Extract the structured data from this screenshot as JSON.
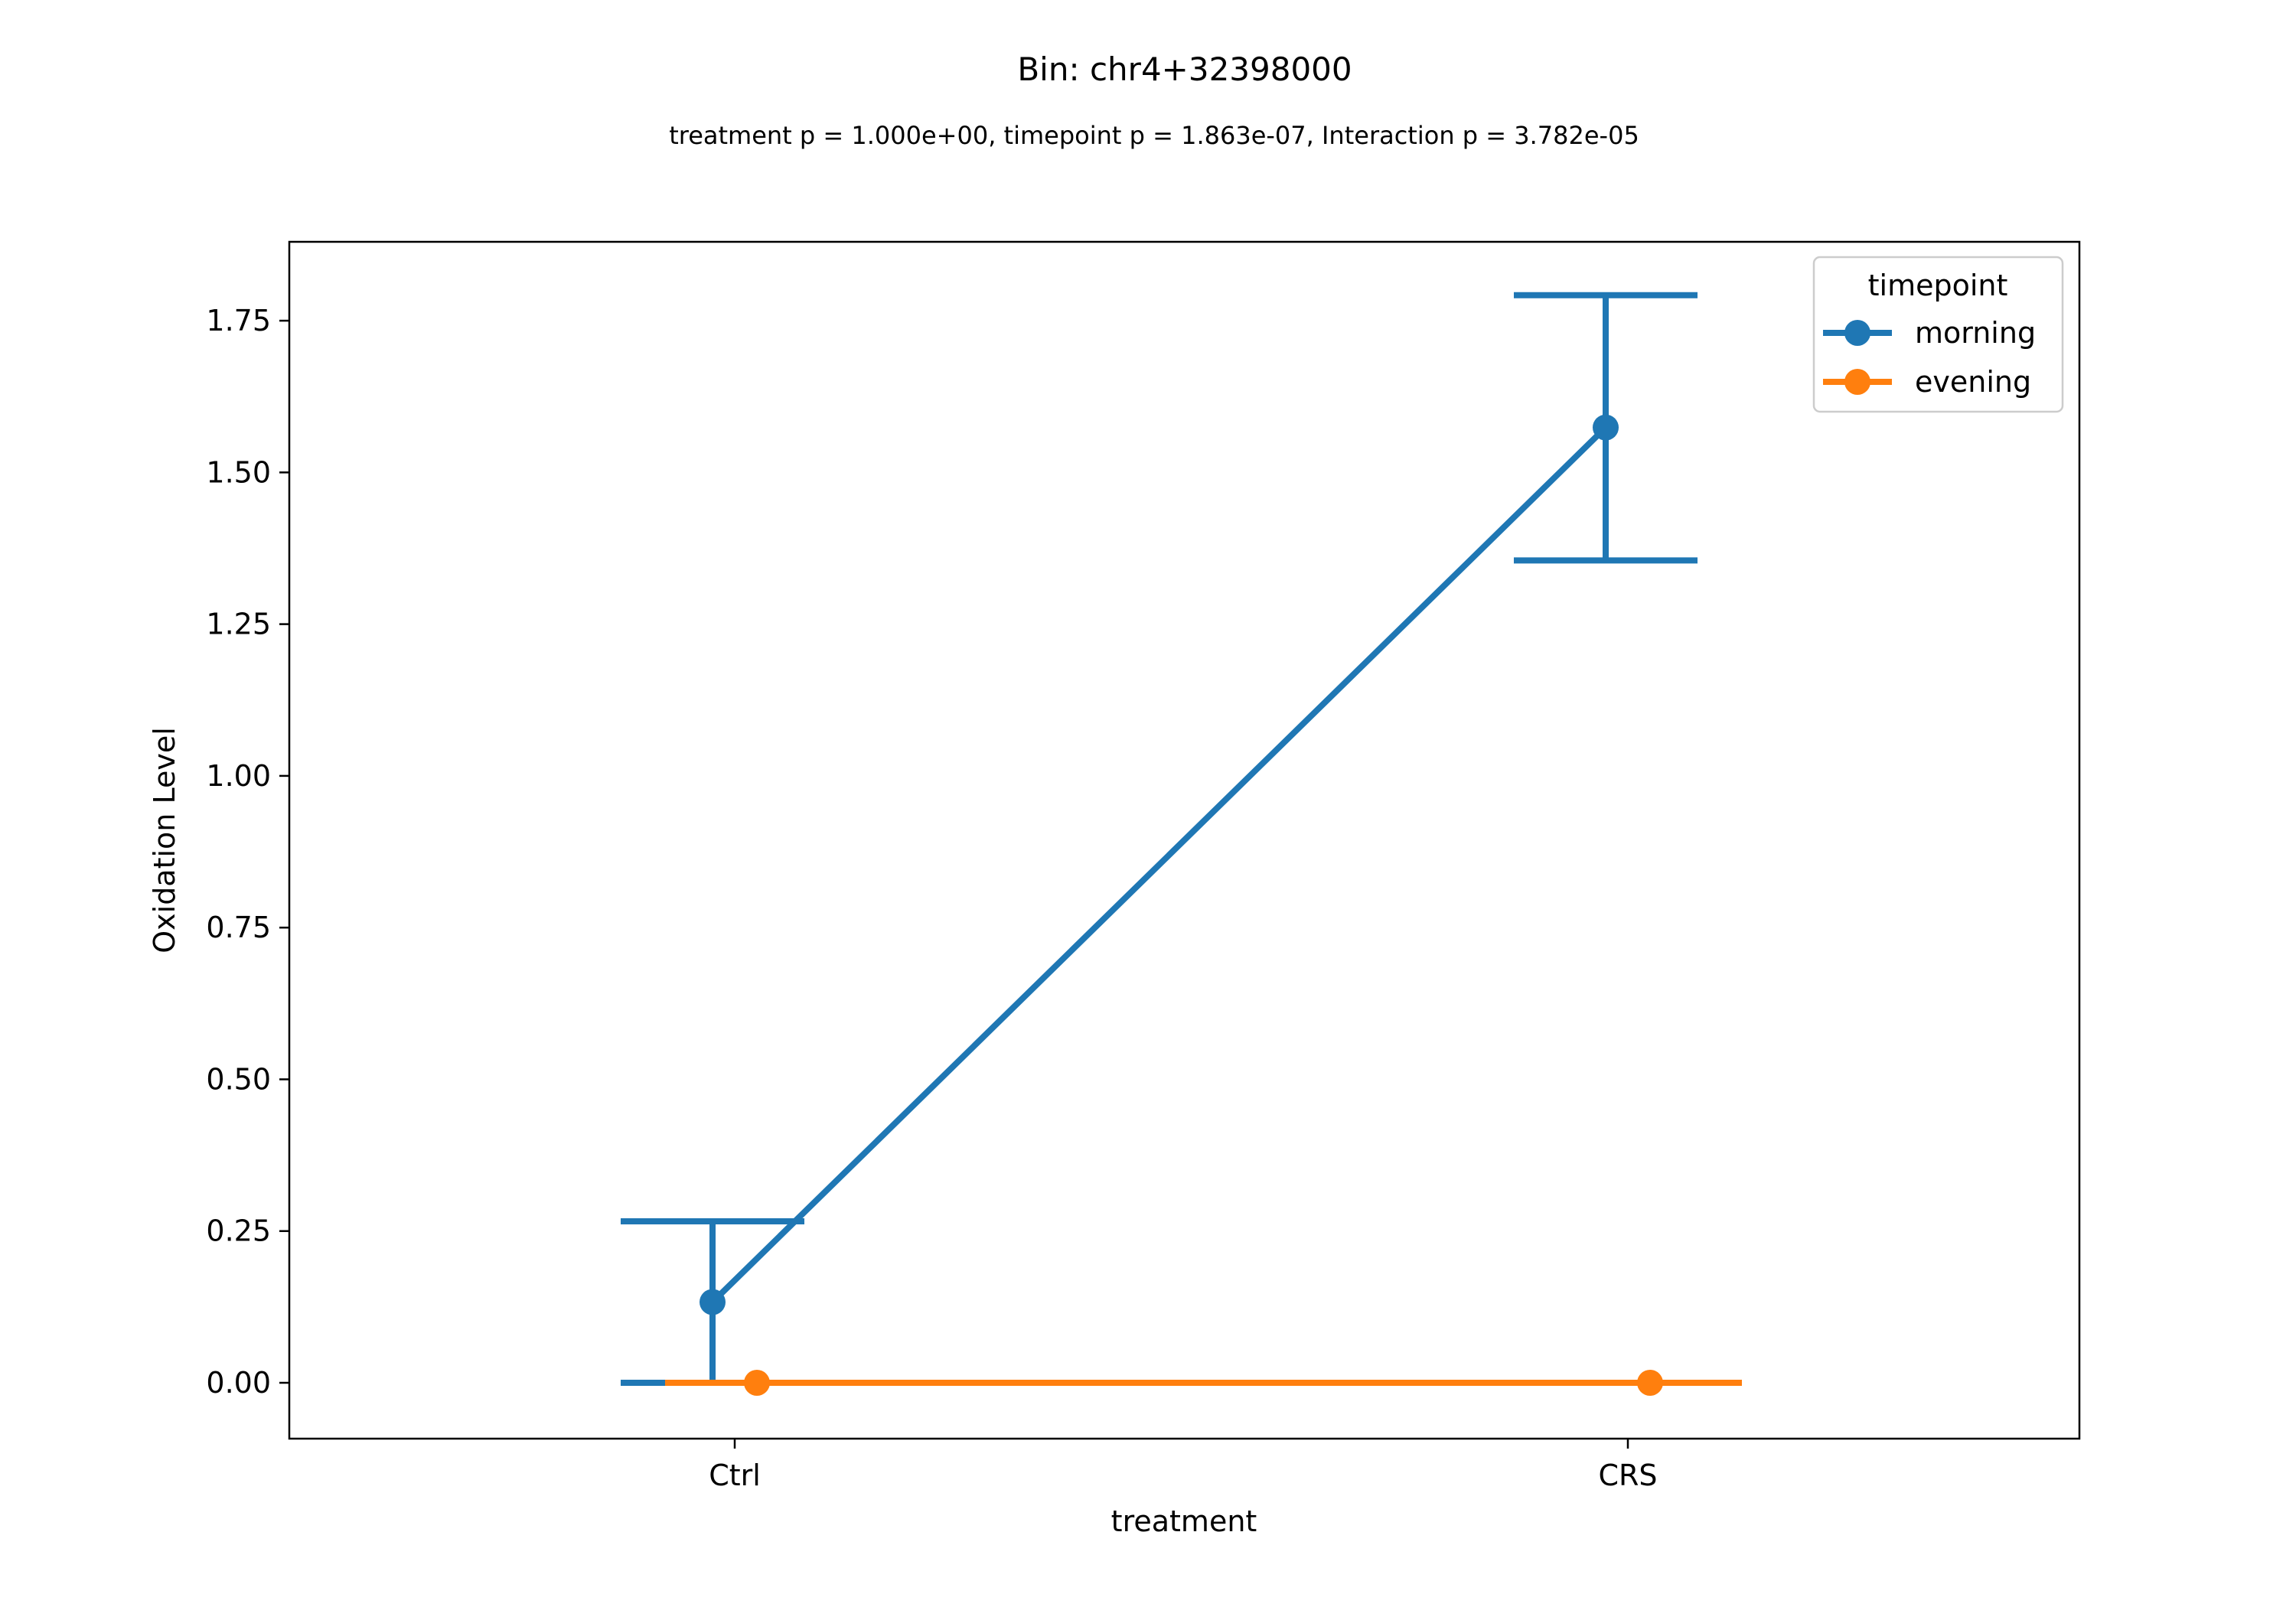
{
  "chart_data": {
    "type": "line",
    "title": "Bin: chr4+32398000",
    "subtitle": "treatment p = 1.000e+00, timepoint p = 1.863e-07, Interaction p = 3.782e-05",
    "xlabel": "treatment",
    "ylabel": "Oxidation Level",
    "categories": [
      "Ctrl",
      "CRS"
    ],
    "ylim": [
      -0.07,
      1.88
    ],
    "yticks": [
      0.0,
      0.25,
      0.5,
      0.75,
      1.0,
      1.25,
      1.5,
      1.75
    ],
    "ytick_labels": [
      "0.00",
      "0.25",
      "0.50",
      "0.75",
      "1.00",
      "1.25",
      "1.50",
      "1.75"
    ],
    "grid": false,
    "legend": {
      "title": "timepoint",
      "position": "top-right"
    },
    "series": [
      {
        "name": "morning",
        "color": "#1f77b4",
        "values": [
          0.133,
          1.574
        ],
        "err_low": [
          0.0,
          1.355
        ],
        "err_high": [
          0.266,
          1.792
        ]
      },
      {
        "name": "evening",
        "color": "#ff7f0e",
        "values": [
          0.0,
          0.0
        ],
        "err_low": [
          0.0,
          0.0
        ],
        "err_high": [
          0.0,
          0.0
        ]
      }
    ]
  }
}
